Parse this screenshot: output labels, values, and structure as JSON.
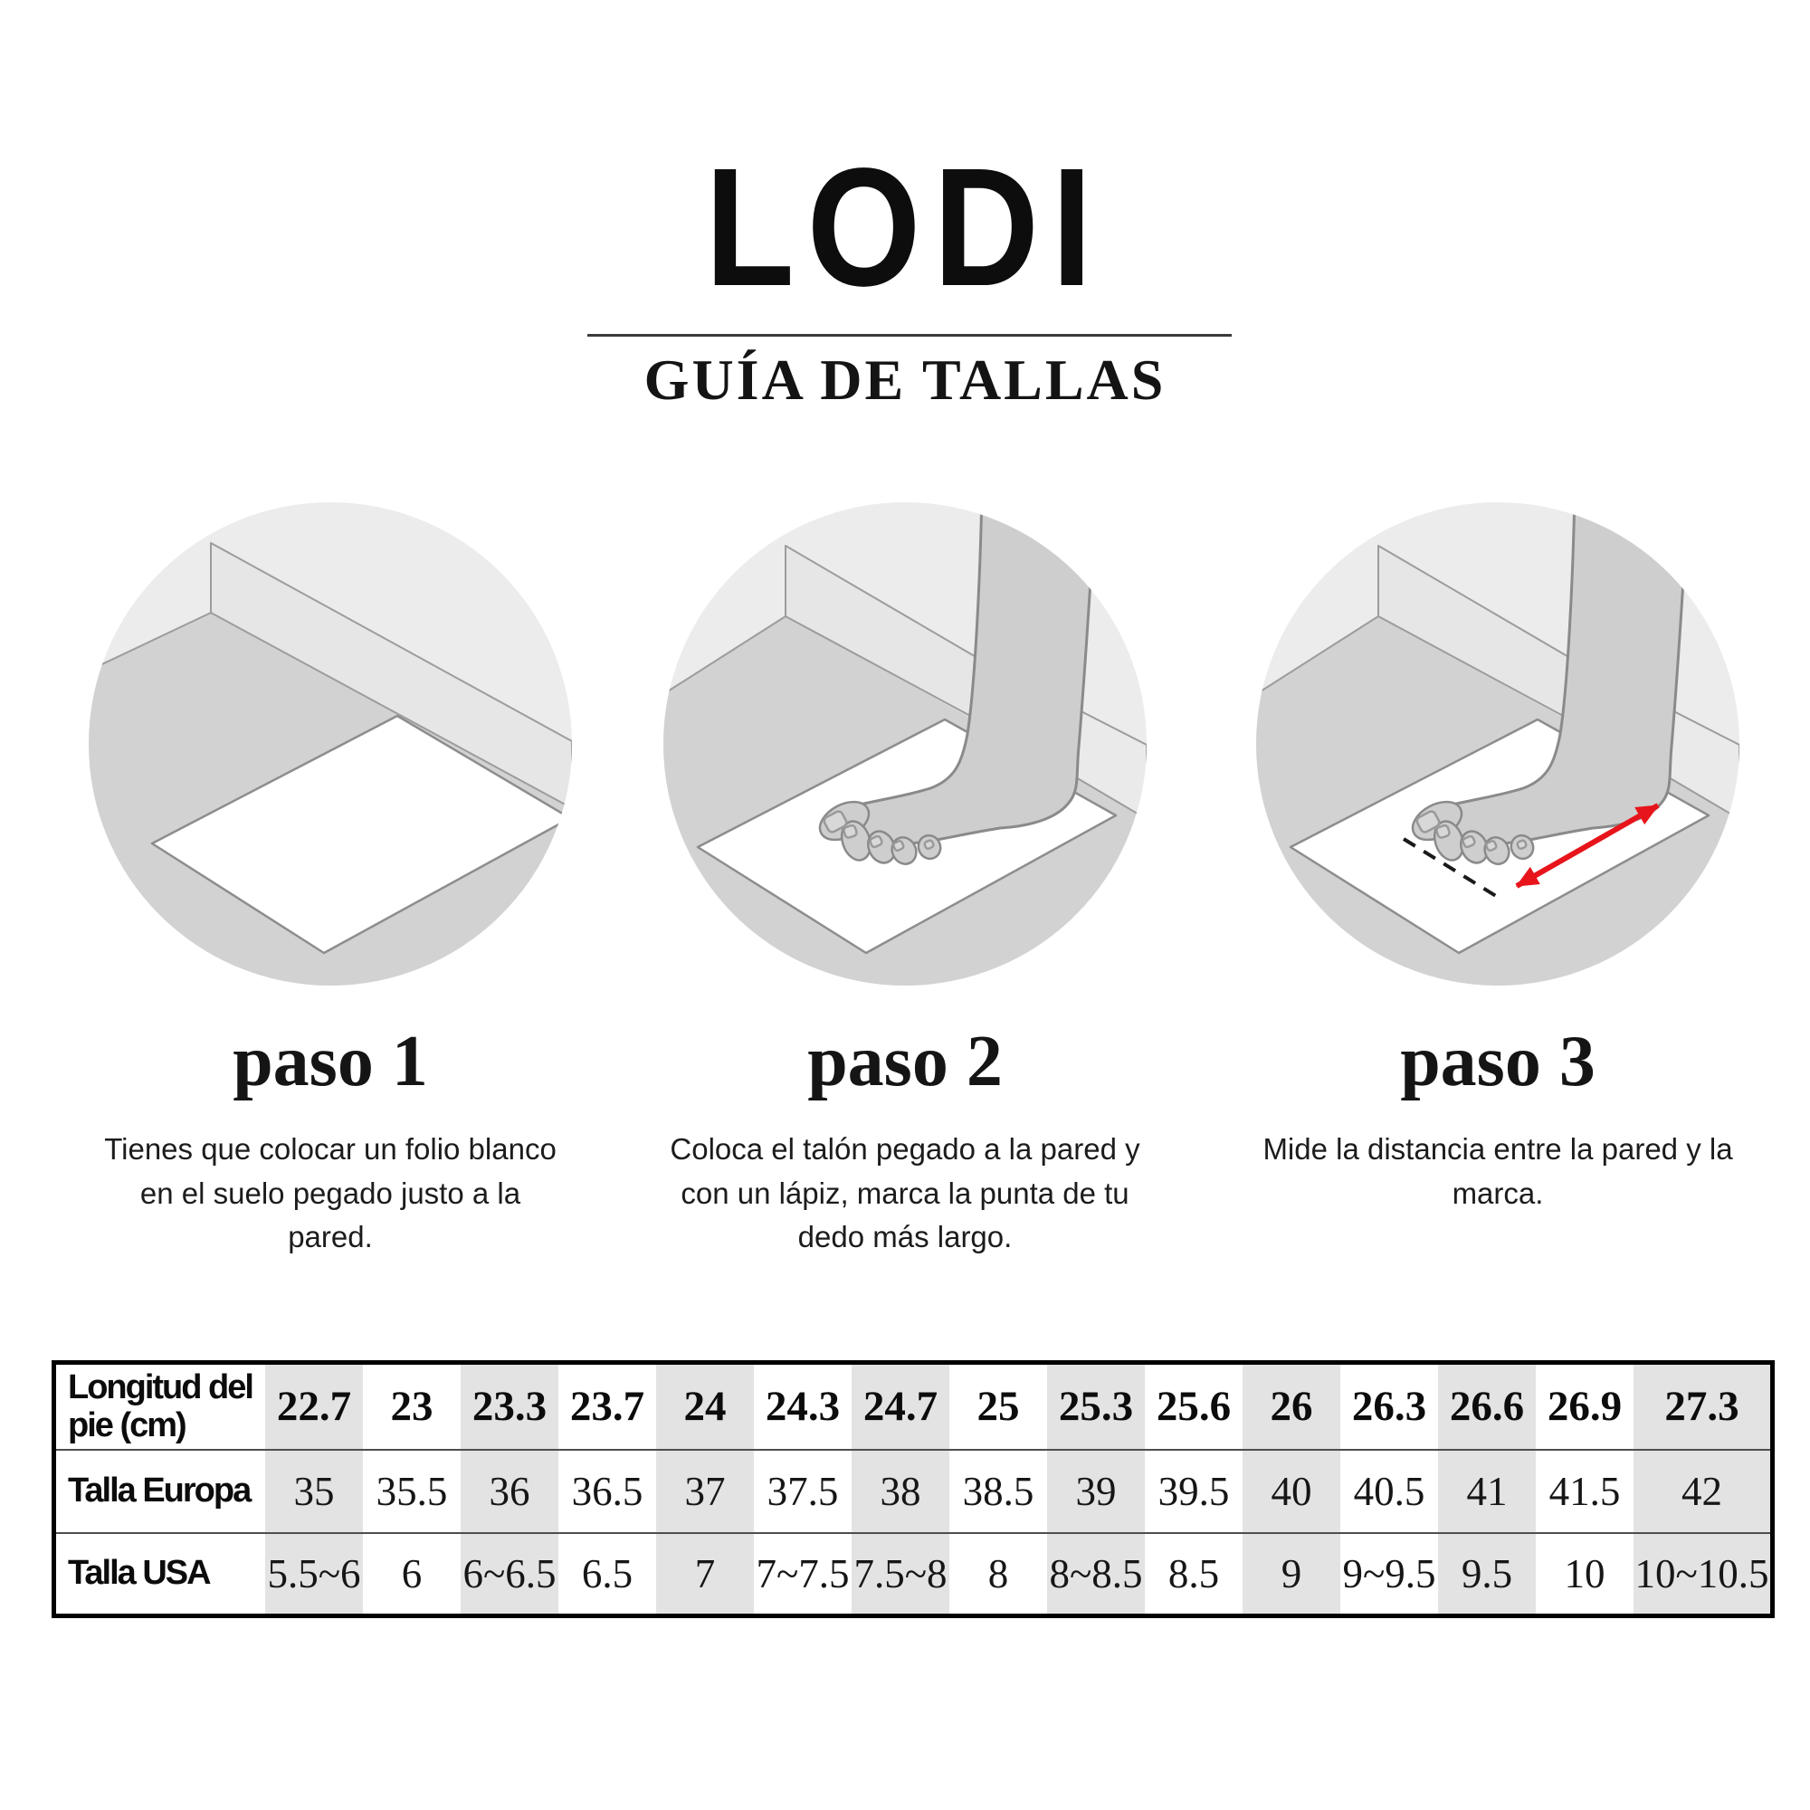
{
  "header": {
    "brand": "LODI",
    "subtitle": "GUÍA DE TALLAS"
  },
  "steps": [
    {
      "title": "paso 1",
      "description": "Tienes que colocar un folio blanco en el suelo pegado justo a la pared.",
      "illustration": "paper-sheet-on-floor-against-wall"
    },
    {
      "title": "paso 2",
      "description": "Coloca el talón pegado a la pared y con un lápiz, marca la punta de tu dedo más largo.",
      "illustration": "bare-foot-standing-on-paper-heel-against-wall"
    },
    {
      "title": "paso 3",
      "description": "Mide la distancia entre la pared y la marca.",
      "illustration": "foot-on-paper-with-red-measuring-arrow-and-dashed-toe-mark"
    }
  ],
  "size_table": {
    "rows": [
      {
        "label": "Longitud del pie (cm)",
        "style": "header",
        "values": [
          "22.7",
          "23",
          "23.3",
          "23.7",
          "24",
          "24.3",
          "24.7",
          "25",
          "25.3",
          "25.6",
          "26",
          "26.3",
          "26.6",
          "26.9",
          "27.3"
        ]
      },
      {
        "label": "Talla Europa",
        "style": "value",
        "values": [
          "35",
          "35.5",
          "36",
          "36.5",
          "37",
          "37.5",
          "38",
          "38.5",
          "39",
          "39.5",
          "40",
          "40.5",
          "41",
          "41.5",
          "42"
        ]
      },
      {
        "label": "Talla USA",
        "style": "value",
        "values": [
          "5.5~6",
          "6",
          "6~6.5",
          "6.5",
          "7",
          "7~7.5",
          "7.5~8",
          "8",
          "8~8.5",
          "8.5",
          "9",
          "9~9.5",
          "9.5",
          "10",
          "10~10.5"
        ]
      }
    ]
  },
  "colors": {
    "accent_red": "#e8141b",
    "table_shade": "#e3e3e3",
    "floor_gray": "#d2d2d2",
    "wall_gray": "#ececec",
    "outline_gray": "#9c9c9c"
  }
}
